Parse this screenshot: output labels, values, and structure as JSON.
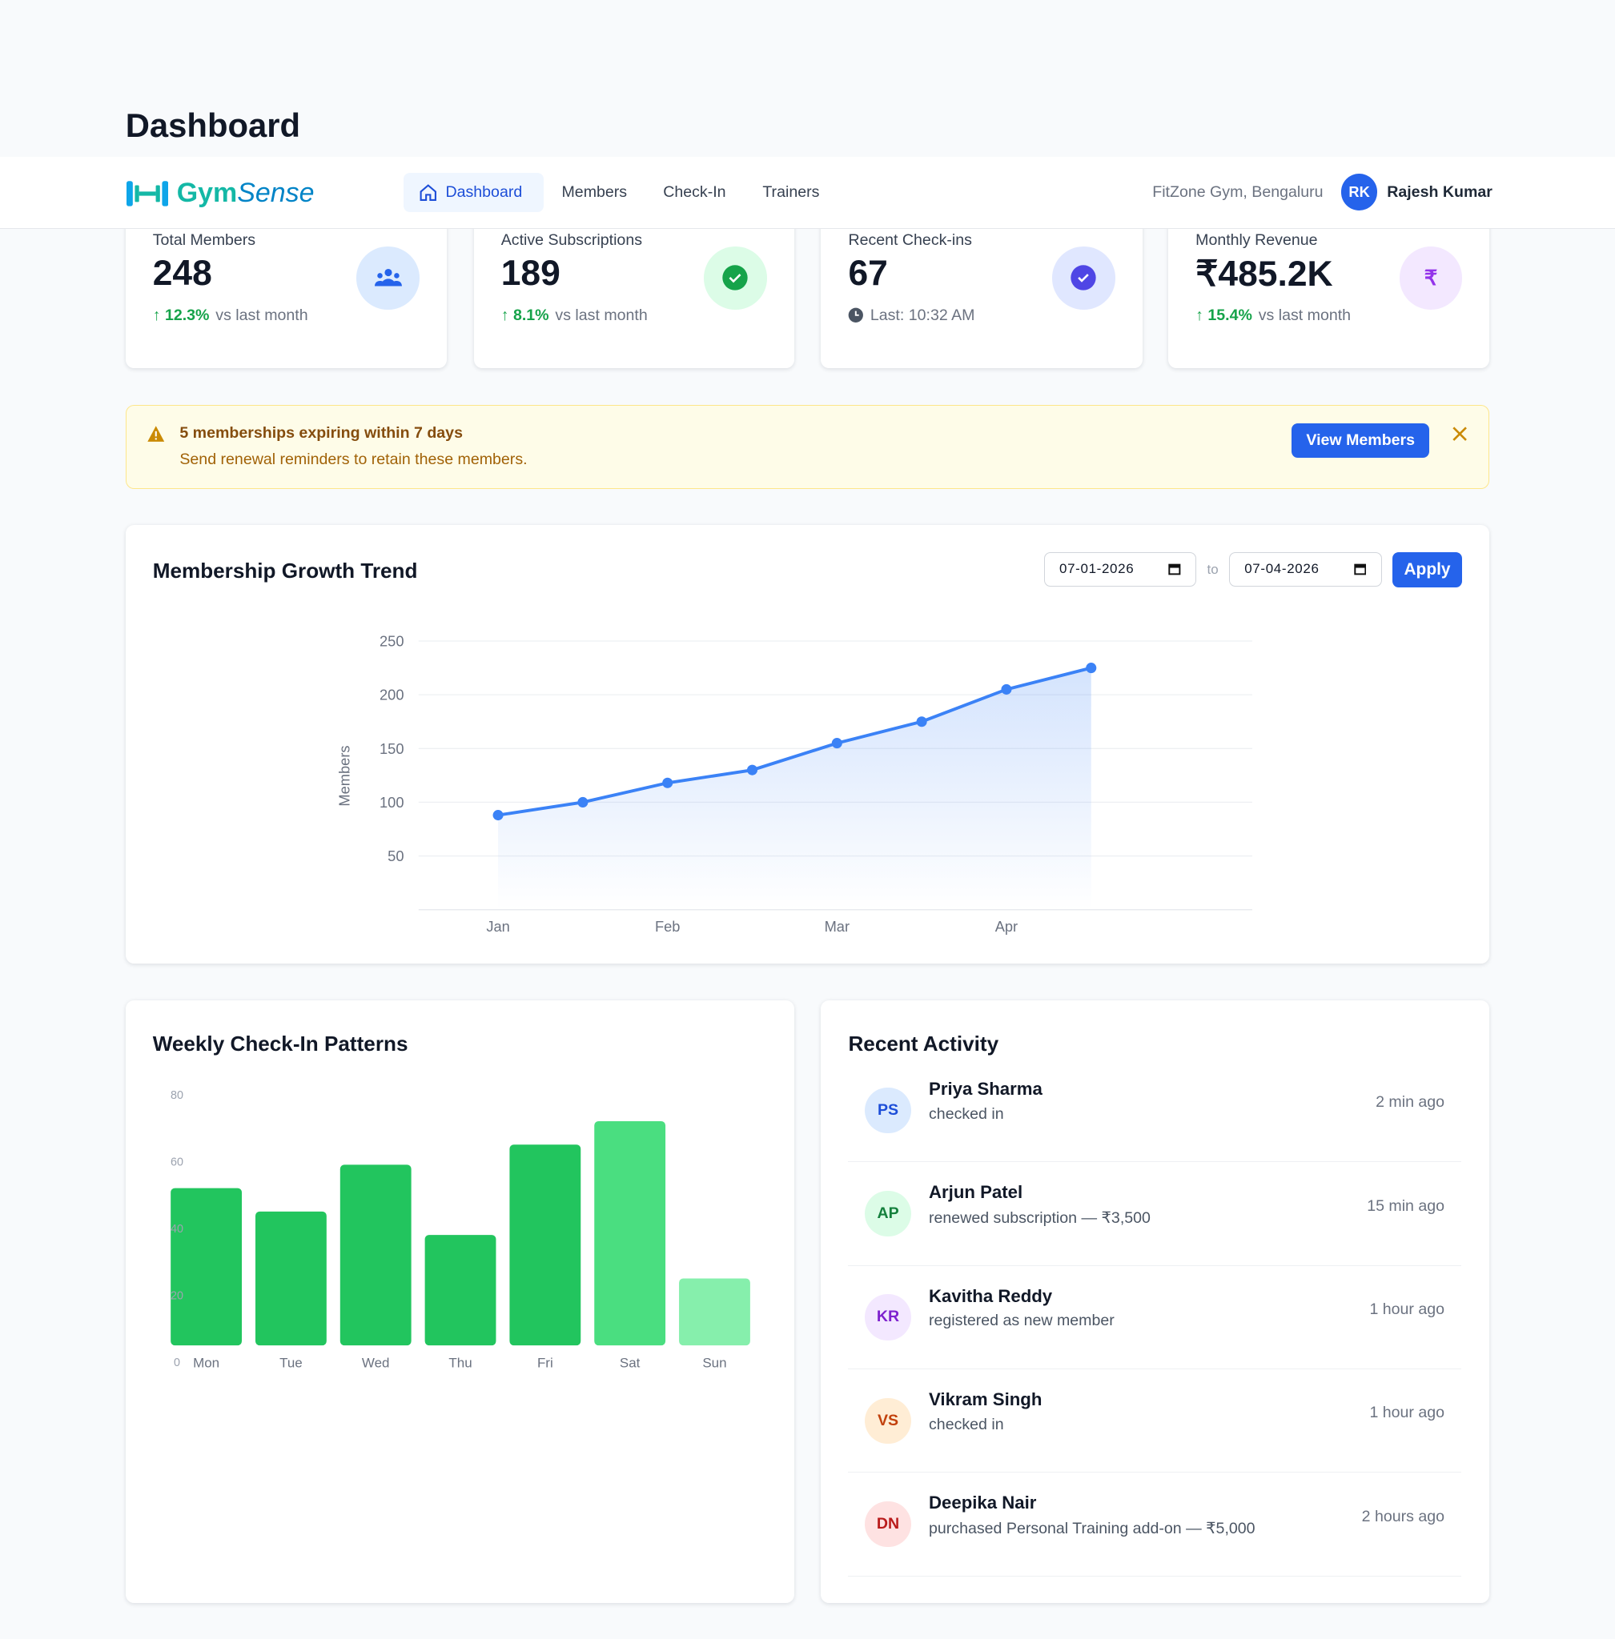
{
  "page_title": "Dashboard",
  "nav": {
    "brand": {
      "part1": "Gym",
      "part2": "Sense"
    },
    "links": [
      "Dashboard",
      "Members",
      "Check-In",
      "Trainers"
    ],
    "gym": "FitZone Gym, Bengaluru",
    "avatar": "RK",
    "user": "Rajesh Kumar"
  },
  "stats": [
    {
      "label": "Total Members",
      "value": 248,
      "change": "12.3%",
      "note": "vs last month"
    },
    {
      "label": "Active Subscriptions",
      "value": 189,
      "change": "8.1%",
      "note": "vs last month"
    },
    {
      "label": "Recent Check-ins",
      "value": 67,
      "note": "Last: 10:32 AM"
    },
    {
      "label": "Monthly Revenue",
      "value": "₹485.2K",
      "change": "15.4%",
      "note": "vs last month"
    }
  ],
  "alert": {
    "title": "5 memberships expiring within 7 days",
    "text": "Send renewal reminders to retain these members.",
    "button": "View Members"
  },
  "growth_chart": {
    "type": "line",
    "title": "Membership Growth Trend",
    "date_from": "07-01-2026",
    "date_sep": "to",
    "date_to": "07-04-2026",
    "button": "Apply",
    "y_label": "Members",
    "categories": [
      "Jan",
      null,
      "Feb",
      null,
      "Mar",
      null,
      "Apr",
      null
    ],
    "values": [
      88,
      100,
      118,
      130,
      155,
      175,
      205,
      225
    ],
    "color": "#3b82f6",
    "ylim": [
      0,
      250
    ],
    "yticks": [
      50,
      100,
      150,
      200,
      250
    ],
    "grid": true
  },
  "checkin_chart": {
    "type": "bar",
    "title": "Weekly Check-In Patterns",
    "categories": [
      "Mon",
      "Tue",
      "Wed",
      "Thu",
      "Fri",
      "Sat",
      "Sun"
    ],
    "values": [
      47,
      40,
      54,
      33,
      60,
      67,
      20
    ],
    "colors": [
      "#22c55e",
      "#22c55e",
      "#22c55e",
      "#22c55e",
      "#22c55e",
      "#4ade80",
      "#86efac"
    ],
    "ylim": [
      0,
      80
    ],
    "yticks": [
      0,
      20,
      40,
      60,
      80
    ]
  },
  "activity": {
    "title": "Recent Activity",
    "items": [
      {
        "initials": "PS",
        "name": "Priya Sharma",
        "action": "checked in",
        "time": "2 min ago"
      },
      {
        "initials": "AP",
        "name": "Arjun Patel",
        "action": "renewed subscription — ₹3,500",
        "time": "15 min ago"
      },
      {
        "initials": "KR",
        "name": "Kavitha Reddy",
        "action": "registered as new member",
        "time": "1 hour ago"
      },
      {
        "initials": "VS",
        "name": "Vikram Singh",
        "action": "checked in",
        "time": "1 hour ago"
      },
      {
        "initials": "DN",
        "name": "Deepika Nair",
        "action": "purchased Personal Training add-on — ₹5,000",
        "time": "2 hours ago"
      }
    ]
  }
}
